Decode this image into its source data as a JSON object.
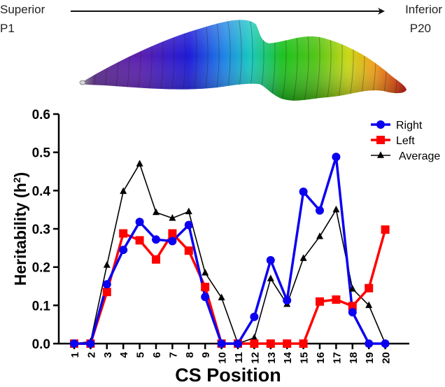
{
  "header": {
    "left_top": "Superior",
    "left_bottom": "P1",
    "right_top": "Inferior",
    "right_bottom": "P20"
  },
  "chart_data": {
    "type": "line",
    "title": "",
    "xlabel": "CS Position",
    "ylabel": "Heritability (h²)",
    "ylabel_main": "Heritability (h",
    "ylabel_sup": "2",
    "ylabel_close": ")",
    "ylim": [
      0,
      0.6
    ],
    "yticks": [
      0.0,
      0.1,
      0.2,
      0.3,
      0.4,
      0.5,
      0.6
    ],
    "ytick_labels": [
      "0.0",
      "0.1",
      "0.2",
      "0.3",
      "0.4",
      "0.5",
      "0.6"
    ],
    "categories": [
      "1",
      "2",
      "3",
      "4",
      "5",
      "6",
      "7",
      "8",
      "9",
      "10",
      "11",
      "12",
      "13",
      "14",
      "15",
      "16",
      "17",
      "18",
      "19",
      "20"
    ],
    "grid": false,
    "legend_position": "top-right",
    "series": [
      {
        "name": "Right",
        "color": "#0b00f0",
        "marker": "circle",
        "values": [
          0.0,
          0.0,
          0.155,
          0.245,
          0.318,
          0.272,
          0.268,
          0.31,
          0.122,
          0.0,
          0.0,
          0.07,
          0.218,
          0.113,
          0.397,
          0.348,
          0.488,
          0.082,
          0.0,
          0.0
        ]
      },
      {
        "name": "Left",
        "color": "#ff0000",
        "marker": "square",
        "values": [
          0.0,
          0.0,
          0.135,
          0.288,
          0.27,
          0.22,
          0.288,
          0.243,
          0.148,
          0.0,
          0.0,
          0.0,
          0.0,
          0.0,
          0.0,
          0.11,
          0.115,
          0.098,
          0.145,
          0.298
        ]
      },
      {
        "name": "Average",
        "color": "#000000",
        "marker": "triangle",
        "values": [
          0.0,
          0.005,
          0.205,
          0.398,
          0.47,
          0.343,
          0.328,
          0.345,
          0.185,
          0.12,
          0.0,
          0.015,
          0.17,
          0.103,
          0.223,
          0.28,
          0.35,
          0.143,
          0.1,
          0.0
        ]
      }
    ]
  }
}
